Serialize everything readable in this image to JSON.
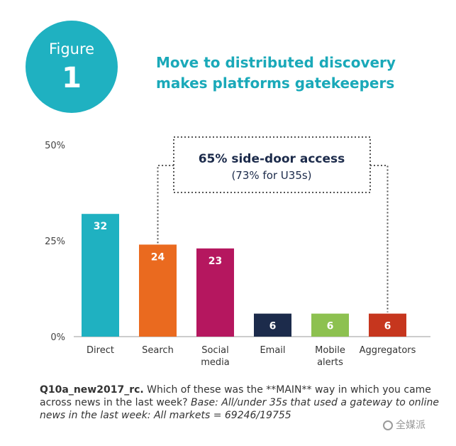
{
  "badge": {
    "word": "Figure",
    "number": "1"
  },
  "headline": {
    "line1": "Move to distributed discovery",
    "line2": "makes platforms gatekeepers"
  },
  "colors": {
    "teal": "#1fb1c1",
    "title_teal": "#1aa9b9",
    "callout_navy": "#1c2b4b",
    "dotted": "#555555"
  },
  "callout": {
    "line1": "65% side-door access",
    "line2": "(73% for U35s)"
  },
  "chart_data": {
    "type": "bar",
    "title": "Move to distributed discovery makes platforms gatekeepers",
    "xlabel": "",
    "ylabel": "",
    "ylim": [
      0,
      50
    ],
    "grid": false,
    "yticks": [
      {
        "value": 0,
        "label": "0%"
      },
      {
        "value": 25,
        "label": "25%"
      },
      {
        "value": 50,
        "label": "50%"
      }
    ],
    "categories": [
      [
        "Direct"
      ],
      [
        "Search"
      ],
      [
        "Social",
        "media"
      ],
      [
        "Email"
      ],
      [
        "Mobile",
        "alerts"
      ],
      [
        "Aggregators"
      ]
    ],
    "values": [
      32,
      24,
      23,
      6,
      6,
      6
    ],
    "colors": [
      "#1fb1c1",
      "#ea6a1f",
      "#b5175f",
      "#1c2b4b",
      "#8dc150",
      "#c6361e"
    ],
    "data_labels": [
      "32",
      "24",
      "23",
      "6",
      "6",
      "6"
    ],
    "annotation": "65% side-door access (73% for U35s)"
  },
  "footnote": {
    "question_id": "Q10a_new2017_rc.",
    "question": "Which of these was the **MAIN** way in which you came across news in the last week?",
    "base": "Base: All/under 35s that used a gateway to online news in the last week: All markets = 69246/19755"
  },
  "watermark": {
    "text": "全媒派",
    "icon": "wechat-icon"
  }
}
